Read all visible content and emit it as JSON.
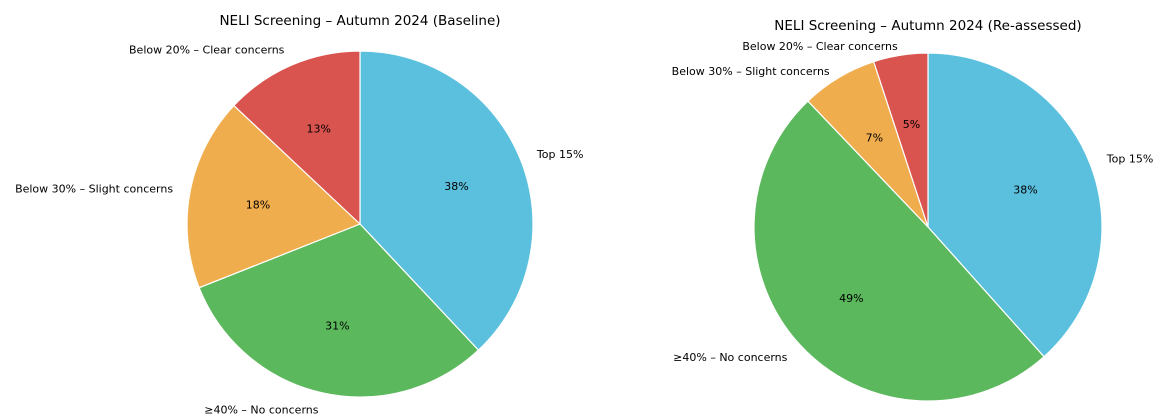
{
  "chart_data": [
    {
      "type": "pie",
      "title": "NELI Screening – Autumn 2024 (Baseline)",
      "slices": [
        {
          "label": "Top 15%",
          "value": 38,
          "pct_label": "38%",
          "color": "#5bc0de"
        },
        {
          "label": "≥40% – No concerns",
          "value": 31,
          "pct_label": "31%",
          "color": "#5cb85c"
        },
        {
          "label": "Below 30% – Slight concerns",
          "value": 18,
          "pct_label": "18%",
          "color": "#f0ad4e"
        },
        {
          "label": "Below 20% – Clear concerns",
          "value": 13,
          "pct_label": "13%",
          "color": "#d9534f"
        }
      ],
      "start_angle_deg": 90,
      "direction": "clockwise"
    },
    {
      "type": "pie",
      "title": "NELI Screening – Autumn 2024 (Re-assessed)",
      "slices": [
        {
          "label": "Top 15%",
          "value": 38,
          "pct_label": "38%",
          "color": "#5bc0de"
        },
        {
          "label": "≥40% – No concerns",
          "value": 49,
          "pct_label": "49%",
          "color": "#5cb85c"
        },
        {
          "label": "Below 30% – Slight concerns",
          "value": 7,
          "pct_label": "7%",
          "color": "#f0ad4e"
        },
        {
          "label": "Below 20% – Clear concerns",
          "value": 5,
          "pct_label": "5%",
          "color": "#d9534f"
        }
      ],
      "start_angle_deg": 90,
      "direction": "clockwise"
    }
  ]
}
